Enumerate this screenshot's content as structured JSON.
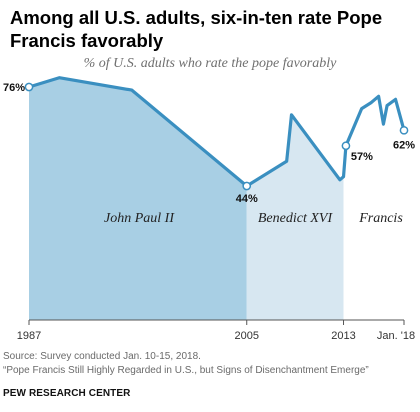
{
  "header": {
    "title": "Among all U.S. adults, six-in-ten rate Pope Francis favorably",
    "subtitle": "% of U.S. adults who rate the pope favorably"
  },
  "chart_data": {
    "type": "area",
    "x_ticks": [
      "1987",
      "2005",
      "2013",
      "Jan. '18"
    ],
    "line_color": "#3a8fc0",
    "series": [
      {
        "name": "John Paul II",
        "color": "#a8cfe4",
        "points": [
          [
            1987.0,
            76
          ],
          [
            1989.5,
            79
          ],
          [
            1995.5,
            75
          ],
          [
            2005.0,
            44
          ]
        ]
      },
      {
        "name": "Benedict XVI",
        "color": "#d7e7f1",
        "points": [
          [
            2005.0,
            44
          ],
          [
            2008.3,
            52
          ],
          [
            2008.7,
            67
          ],
          [
            2012.7,
            46
          ],
          [
            2013.0,
            47
          ]
        ]
      },
      {
        "name": "Francis",
        "color": "#ffffff",
        "points": [
          [
            2013.0,
            47
          ],
          [
            2013.2,
            57
          ],
          [
            2014.5,
            69
          ],
          [
            2015.3,
            71
          ],
          [
            2015.9,
            73
          ],
          [
            2016.3,
            64
          ],
          [
            2016.6,
            70
          ],
          [
            2017.3,
            72
          ],
          [
            2018.0,
            62
          ]
        ]
      }
    ],
    "markers": [
      {
        "x": 1987.0,
        "y": 76,
        "label": "76%"
      },
      {
        "x": 2005.0,
        "y": 44,
        "label": "44%"
      },
      {
        "x": 2013.2,
        "y": 57,
        "label": "57%"
      },
      {
        "x": 2018.0,
        "y": 62,
        "label": "62%"
      }
    ]
  },
  "footer": {
    "source": "Source: Survey conducted Jan. 10-15, 2018.",
    "note": "“Pope Francis Still Highly Regarded in U.S., but Signs of Disenchantment Emerge”",
    "brand": "PEW RESEARCH CENTER"
  }
}
